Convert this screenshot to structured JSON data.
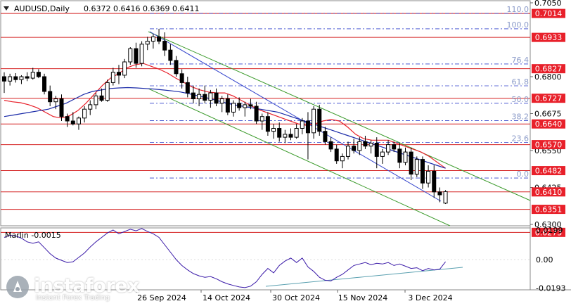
{
  "header": {
    "symbol": "AUDUSD,Daily",
    "ohlc": "0.6372 0.6416 0.6369 0.6411"
  },
  "watermark": {
    "brand": "instaforex",
    "tagline": "Instant Forex Trading",
    "icon": "instaforex-logo"
  },
  "colors": {
    "candle": "#000000",
    "ma_red": "#e8202a",
    "ma_blue": "#1a2aa8",
    "channel_green": "#3a9a2a",
    "fibo_line": "#3344cc",
    "fibo_label": "#8a9ac8",
    "level_red": "#d42020",
    "price_badge_bg": "#e8202a",
    "marlin_line": "#3a1aa8",
    "marlin_trend": "#5aa0b0"
  },
  "chart_data": [
    {
      "type": "candlestick",
      "title": "AUDUSD,Daily",
      "ylim": [
        0.6255,
        0.705
      ],
      "x_tick_labels": [
        "26 Sep 2024",
        "14 Oct 2024",
        "30 Oct 2024",
        "15 Nov 2024",
        "3 Dec 2024"
      ],
      "y_tick_labels": [
        "0.7050",
        "0.6800",
        "0.6675",
        "0.6550",
        "0.6425",
        "0.6300"
      ],
      "y_tick_values": [
        0.705,
        0.68,
        0.6675,
        0.655,
        0.6425,
        0.63
      ],
      "price_levels": [
        0.7014,
        0.6933,
        0.6827,
        0.6727,
        0.664,
        0.657,
        0.6482,
        0.641,
        0.6351,
        0.6273
      ],
      "price_level_labels": [
        "0.7014",
        "0.6933",
        "0.6827",
        "0.6727",
        "0.6640",
        "0.6570",
        "0.6482",
        "0.6410",
        "0.6351",
        "0.6273"
      ],
      "fibonacci_levels": [
        {
          "label": "110.0",
          "price": 0.7014
        },
        {
          "label": "100.0",
          "price": 0.6962
        },
        {
          "label": "76.4",
          "price": 0.6843
        },
        {
          "label": "61.8",
          "price": 0.6769
        },
        {
          "label": "50.0",
          "price": 0.671
        },
        {
          "label": "38.2",
          "price": 0.6651
        },
        {
          "label": "23.6",
          "price": 0.6577
        },
        {
          "label": "0.0",
          "price": 0.6457
        }
      ],
      "candles": [
        {
          "o": 0.68,
          "h": 0.6815,
          "l": 0.6745,
          "c": 0.6785
        },
        {
          "o": 0.6785,
          "h": 0.681,
          "l": 0.677,
          "c": 0.68
        },
        {
          "o": 0.68,
          "h": 0.6812,
          "l": 0.678,
          "c": 0.679
        },
        {
          "o": 0.679,
          "h": 0.6805,
          "l": 0.6775,
          "c": 0.68
        },
        {
          "o": 0.68,
          "h": 0.6815,
          "l": 0.6785,
          "c": 0.6795
        },
        {
          "o": 0.6795,
          "h": 0.683,
          "l": 0.679,
          "c": 0.6815
        },
        {
          "o": 0.6815,
          "h": 0.6825,
          "l": 0.6795,
          "c": 0.68
        },
        {
          "o": 0.68,
          "h": 0.681,
          "l": 0.674,
          "c": 0.675
        },
        {
          "o": 0.675,
          "h": 0.677,
          "l": 0.67,
          "c": 0.6715
        },
        {
          "o": 0.6715,
          "h": 0.6735,
          "l": 0.669,
          "c": 0.6725
        },
        {
          "o": 0.6725,
          "h": 0.674,
          "l": 0.665,
          "c": 0.6665
        },
        {
          "o": 0.6665,
          "h": 0.6675,
          "l": 0.663,
          "c": 0.665
        },
        {
          "o": 0.665,
          "h": 0.668,
          "l": 0.6635,
          "c": 0.664
        },
        {
          "o": 0.664,
          "h": 0.6665,
          "l": 0.662,
          "c": 0.666
        },
        {
          "o": 0.666,
          "h": 0.67,
          "l": 0.6645,
          "c": 0.669
        },
        {
          "o": 0.669,
          "h": 0.672,
          "l": 0.667,
          "c": 0.6705
        },
        {
          "o": 0.6705,
          "h": 0.6745,
          "l": 0.669,
          "c": 0.6735
        },
        {
          "o": 0.6735,
          "h": 0.676,
          "l": 0.6715,
          "c": 0.672
        },
        {
          "o": 0.672,
          "h": 0.679,
          "l": 0.6715,
          "c": 0.678
        },
        {
          "o": 0.678,
          "h": 0.683,
          "l": 0.677,
          "c": 0.6815
        },
        {
          "o": 0.6815,
          "h": 0.684,
          "l": 0.6775,
          "c": 0.6805
        },
        {
          "o": 0.6805,
          "h": 0.686,
          "l": 0.6795,
          "c": 0.685
        },
        {
          "o": 0.685,
          "h": 0.69,
          "l": 0.684,
          "c": 0.6895
        },
        {
          "o": 0.6895,
          "h": 0.6915,
          "l": 0.683,
          "c": 0.6845
        },
        {
          "o": 0.6845,
          "h": 0.692,
          "l": 0.6835,
          "c": 0.691
        },
        {
          "o": 0.691,
          "h": 0.6935,
          "l": 0.689,
          "c": 0.692
        },
        {
          "o": 0.692,
          "h": 0.6945,
          "l": 0.6895,
          "c": 0.6935
        },
        {
          "o": 0.6935,
          "h": 0.6962,
          "l": 0.691,
          "c": 0.692
        },
        {
          "o": 0.692,
          "h": 0.695,
          "l": 0.687,
          "c": 0.689
        },
        {
          "o": 0.689,
          "h": 0.691,
          "l": 0.684,
          "c": 0.6855
        },
        {
          "o": 0.6855,
          "h": 0.687,
          "l": 0.68,
          "c": 0.681
        },
        {
          "o": 0.681,
          "h": 0.6825,
          "l": 0.676,
          "c": 0.678
        },
        {
          "o": 0.678,
          "h": 0.68,
          "l": 0.673,
          "c": 0.6745
        },
        {
          "o": 0.6745,
          "h": 0.677,
          "l": 0.671,
          "c": 0.6725
        },
        {
          "o": 0.6725,
          "h": 0.676,
          "l": 0.67,
          "c": 0.674
        },
        {
          "o": 0.674,
          "h": 0.677,
          "l": 0.671,
          "c": 0.672
        },
        {
          "o": 0.672,
          "h": 0.6755,
          "l": 0.6695,
          "c": 0.6745
        },
        {
          "o": 0.6745,
          "h": 0.676,
          "l": 0.67,
          "c": 0.671
        },
        {
          "o": 0.671,
          "h": 0.6735,
          "l": 0.668,
          "c": 0.6725
        },
        {
          "o": 0.6725,
          "h": 0.674,
          "l": 0.667,
          "c": 0.668
        },
        {
          "o": 0.668,
          "h": 0.672,
          "l": 0.6665,
          "c": 0.671
        },
        {
          "o": 0.671,
          "h": 0.673,
          "l": 0.6685,
          "c": 0.6695
        },
        {
          "o": 0.6695,
          "h": 0.6715,
          "l": 0.6665,
          "c": 0.6705
        },
        {
          "o": 0.6705,
          "h": 0.6725,
          "l": 0.669,
          "c": 0.67
        },
        {
          "o": 0.67,
          "h": 0.6715,
          "l": 0.664,
          "c": 0.665
        },
        {
          "o": 0.665,
          "h": 0.6675,
          "l": 0.662,
          "c": 0.6665
        },
        {
          "o": 0.6665,
          "h": 0.668,
          "l": 0.66,
          "c": 0.6615
        },
        {
          "o": 0.6615,
          "h": 0.664,
          "l": 0.659,
          "c": 0.6625
        },
        {
          "o": 0.6625,
          "h": 0.6645,
          "l": 0.658,
          "c": 0.6595
        },
        {
          "o": 0.6595,
          "h": 0.662,
          "l": 0.6575,
          "c": 0.6605
        },
        {
          "o": 0.6605,
          "h": 0.6625,
          "l": 0.6585,
          "c": 0.6595
        },
        {
          "o": 0.6595,
          "h": 0.664,
          "l": 0.659,
          "c": 0.6625
        },
        {
          "o": 0.6625,
          "h": 0.666,
          "l": 0.6605,
          "c": 0.665
        },
        {
          "o": 0.665,
          "h": 0.668,
          "l": 0.652,
          "c": 0.661
        },
        {
          "o": 0.661,
          "h": 0.67,
          "l": 0.659,
          "c": 0.669
        },
        {
          "o": 0.669,
          "h": 0.6705,
          "l": 0.66,
          "c": 0.6615
        },
        {
          "o": 0.6615,
          "h": 0.663,
          "l": 0.657,
          "c": 0.658
        },
        {
          "o": 0.658,
          "h": 0.6595,
          "l": 0.6545,
          "c": 0.6555
        },
        {
          "o": 0.6555,
          "h": 0.657,
          "l": 0.6505,
          "c": 0.6515
        },
        {
          "o": 0.6515,
          "h": 0.654,
          "l": 0.649,
          "c": 0.653
        },
        {
          "o": 0.653,
          "h": 0.658,
          "l": 0.652,
          "c": 0.6565
        },
        {
          "o": 0.6565,
          "h": 0.659,
          "l": 0.654,
          "c": 0.655
        },
        {
          "o": 0.655,
          "h": 0.6595,
          "l": 0.6535,
          "c": 0.658
        },
        {
          "o": 0.658,
          "h": 0.66,
          "l": 0.6555,
          "c": 0.6565
        },
        {
          "o": 0.6565,
          "h": 0.6585,
          "l": 0.654,
          "c": 0.6575
        },
        {
          "o": 0.6575,
          "h": 0.6595,
          "l": 0.649,
          "c": 0.653
        },
        {
          "o": 0.653,
          "h": 0.6555,
          "l": 0.6505,
          "c": 0.6545
        },
        {
          "o": 0.6545,
          "h": 0.6585,
          "l": 0.6535,
          "c": 0.657
        },
        {
          "o": 0.657,
          "h": 0.658,
          "l": 0.6545,
          "c": 0.6555
        },
        {
          "o": 0.6555,
          "h": 0.6575,
          "l": 0.649,
          "c": 0.651
        },
        {
          "o": 0.651,
          "h": 0.656,
          "l": 0.65,
          "c": 0.6545
        },
        {
          "o": 0.6545,
          "h": 0.656,
          "l": 0.645,
          "c": 0.647
        },
        {
          "o": 0.647,
          "h": 0.653,
          "l": 0.646,
          "c": 0.652
        },
        {
          "o": 0.652,
          "h": 0.653,
          "l": 0.642,
          "c": 0.644
        },
        {
          "o": 0.644,
          "h": 0.65,
          "l": 0.6425,
          "c": 0.648
        },
        {
          "o": 0.648,
          "h": 0.65,
          "l": 0.639,
          "c": 0.641
        },
        {
          "o": 0.641,
          "h": 0.6425,
          "l": 0.6375,
          "c": 0.64
        },
        {
          "o": 0.6372,
          "h": 0.6416,
          "l": 0.6369,
          "c": 0.6411
        }
      ],
      "series": [
        {
          "kind": "moving-average",
          "color": "#e8202a",
          "values": [
            0.672,
            0.6715,
            0.6712,
            0.6705,
            0.6695,
            0.668,
            0.6665,
            0.666,
            0.6668,
            0.6685,
            0.671,
            0.674,
            0.677,
            0.6795,
            0.681,
            0.683,
            0.684,
            0.6845,
            0.6835,
            0.6825,
            0.6812,
            0.6795,
            0.678,
            0.6765,
            0.6755,
            0.6748,
            0.6745,
            0.6745,
            0.6735,
            0.672,
            0.6705,
            0.669,
            0.668,
            0.667,
            0.666,
            0.665,
            0.664,
            0.6635,
            0.664,
            0.665,
            0.6655,
            0.665,
            0.663,
            0.6605,
            0.659,
            0.6585,
            0.6585,
            0.6585,
            0.6575,
            0.6565,
            0.6555,
            0.6545,
            0.653,
            0.651,
            0.649
          ]
        },
        {
          "kind": "moving-average",
          "color": "#1a2aa8",
          "values": [
            0.6665,
            0.667,
            0.6675,
            0.668,
            0.6685,
            0.669,
            0.67,
            0.671,
            0.6725,
            0.674,
            0.675,
            0.6755,
            0.676,
            0.6762,
            0.6763,
            0.6762,
            0.676,
            0.6758,
            0.6755,
            0.6752,
            0.6748,
            0.6742,
            0.6735,
            0.6728,
            0.672,
            0.6712,
            0.6705,
            0.67,
            0.6695,
            0.669,
            0.6685,
            0.668,
            0.667,
            0.666,
            0.665,
            0.664,
            0.663,
            0.662,
            0.661,
            0.66,
            0.659,
            0.658,
            0.657,
            0.656,
            0.655,
            0.654,
            0.653,
            0.652,
            0.651,
            0.65,
            0.649
          ]
        }
      ]
    },
    {
      "type": "line",
      "title": "Marlin -0.0015",
      "ylim": [
        -0.0215,
        0.0225
      ],
      "y_tick_labels": [
        "0.0199",
        "0.00",
        "-0.0193"
      ],
      "y_tick_values": [
        0.0199,
        0.0,
        -0.0193
      ],
      "series": [
        {
          "values": [
            0.015,
            0.0165,
            0.016,
            0.0145,
            0.012,
            0.011,
            0.012,
            0.008,
            0.004,
            0.001,
            -0.0005,
            -0.002,
            -0.0015,
            0.0015,
            0.0045,
            0.0085,
            0.012,
            0.015,
            0.018,
            0.02,
            0.0175,
            0.019,
            0.0205,
            0.0195,
            0.021,
            0.019,
            0.0175,
            0.015,
            0.01,
            0.005,
            0.0,
            -0.004,
            -0.007,
            -0.0095,
            -0.011,
            -0.012,
            -0.0115,
            -0.013,
            -0.015,
            -0.0165,
            -0.0175,
            -0.0185,
            -0.019,
            -0.018,
            -0.015,
            -0.01,
            -0.006,
            -0.009,
            -0.004,
            -0.001,
            0.001,
            -0.002,
            0.001,
            -0.005,
            -0.008,
            -0.012,
            -0.014,
            -0.0145,
            -0.012,
            -0.01,
            -0.007,
            -0.004,
            -0.003,
            -0.002,
            -0.0035,
            -0.0025,
            -0.003,
            -0.002,
            -0.004,
            -0.003,
            -0.0045,
            -0.006,
            -0.0055,
            -0.0075,
            -0.006,
            -0.007,
            -0.0065,
            -0.0015
          ]
        }
      ]
    }
  ]
}
